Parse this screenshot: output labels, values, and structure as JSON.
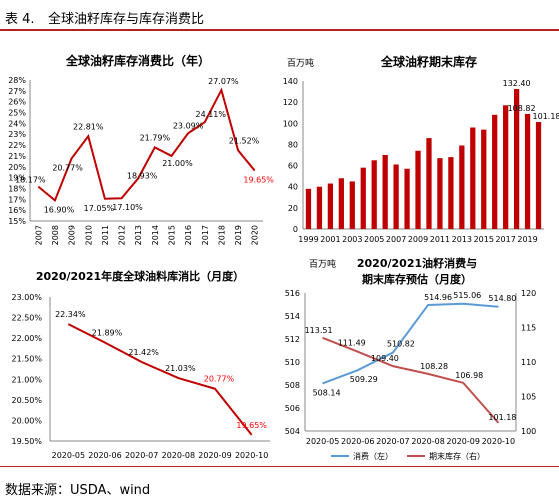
{
  "header": {
    "table_label": "表 4.",
    "title": "全球油籽库存与库存消费比"
  },
  "source": "数据来源：USDA、wind",
  "chart_data": [
    {
      "id": "c1",
      "type": "line",
      "title": "全球油籽库存消费比（年）",
      "categories": [
        "2007",
        "2008",
        "2009",
        "2010",
        "2011",
        "2012",
        "2013",
        "2014",
        "2015",
        "2016",
        "2017",
        "2018",
        "2019",
        "2020"
      ],
      "series": [
        {
          "values": [
            18.17,
            16.9,
            20.77,
            22.81,
            17.05,
            17.1,
            18.93,
            21.79,
            21.0,
            23.09,
            24.11,
            27.07,
            21.52,
            19.65
          ]
        }
      ],
      "data_labels": [
        "18.17%",
        "16.90%",
        "20.77%",
        "22.81%",
        "17.05%",
        "17.10%",
        "18.93%",
        "21.79%",
        "21.00%",
        "23.09%",
        "24.11%",
        "27.07%",
        "21.52%",
        "19.65%"
      ],
      "yticks": [
        "15%",
        "16%",
        "17%",
        "18%",
        "19%",
        "20%",
        "21%",
        "22%",
        "23%",
        "24%",
        "25%",
        "26%",
        "27%",
        "28%"
      ],
      "ylim": [
        15,
        28
      ],
      "color": "#c00000",
      "highlight_color": "#ff0000"
    },
    {
      "id": "c2",
      "type": "bar",
      "title": "全球油籽期末库存",
      "unit": "百万吨",
      "years": [
        1999,
        2000,
        2001,
        2002,
        2003,
        2004,
        2005,
        2006,
        2007,
        2008,
        2009,
        2010,
        2011,
        2012,
        2013,
        2014,
        2015,
        2016,
        2017,
        2018,
        2019,
        2020
      ],
      "values": [
        38,
        40,
        43,
        48,
        45,
        58,
        65,
        70,
        61,
        57,
        74,
        86,
        67,
        68,
        79,
        96,
        94,
        108,
        117,
        132.4,
        108.82,
        101.18
      ],
      "xticks": [
        "1999",
        "2001",
        "2003",
        "2005",
        "2007",
        "2009",
        "2011",
        "2013",
        "2015",
        "2017",
        "2019"
      ],
      "labeled": {
        "19": "132.40",
        "20": "108.82",
        "21": "101.18"
      },
      "yticks": [
        "0",
        "20",
        "40",
        "60",
        "80",
        "100",
        "120",
        "140"
      ],
      "ylim": [
        0,
        140
      ],
      "color": "#c00000"
    },
    {
      "id": "c3",
      "type": "line",
      "title": "2020/2021年度全球油料库消比（月度）",
      "categories": [
        "2020-05",
        "2020-06",
        "2020-07",
        "2020-08",
        "2020-09",
        "2020-10"
      ],
      "series": [
        {
          "values": [
            22.34,
            21.89,
            21.42,
            21.03,
            20.77,
            19.65
          ]
        }
      ],
      "data_labels": [
        "22.34%",
        "21.89%",
        "21.42%",
        "21.03%",
        "20.77%",
        "19.65%"
      ],
      "yticks": [
        "19.50%",
        "20.00%",
        "20.50%",
        "21.00%",
        "21.50%",
        "22.00%",
        "22.50%",
        "23.00%"
      ],
      "ylim": [
        19.5,
        23
      ],
      "color": "#c00000",
      "highlight_color": "#ff0000"
    },
    {
      "id": "c4",
      "type": "line",
      "title": "2020/2021油籽消费与期末库存预估（月度）",
      "title_lines": [
        "2020/2021油籽消费与",
        "期末库存预估（月度）"
      ],
      "unit": "百万吨",
      "categories": [
        "2020-05",
        "2020-06",
        "2020-07",
        "2020-08",
        "2020-09",
        "2020-10"
      ],
      "series": [
        {
          "name": "消费（左）",
          "axis": "left",
          "color": "#5b9bd5",
          "values": [
            508.14,
            509.29,
            510.82,
            514.96,
            515.06,
            514.8
          ],
          "labels": [
            "508.14",
            "509.29",
            "510.82",
            "514.96",
            "515.06",
            "514.80"
          ]
        },
        {
          "name": "期末库存（右）",
          "axis": "right",
          "color": "#c0504d",
          "values": [
            113.51,
            111.49,
            109.4,
            108.28,
            106.98,
            101.18
          ],
          "labels": [
            "113.51",
            "111.49",
            "109.40",
            "108.28",
            "106.98",
            "101.18"
          ]
        }
      ],
      "yticks_left": [
        "504",
        "506",
        "508",
        "510",
        "512",
        "514",
        "516"
      ],
      "ylim_left": [
        504,
        516
      ],
      "yticks_right": [
        "100",
        "105",
        "110",
        "115",
        "120"
      ],
      "ylim_right": [
        100,
        120
      ]
    }
  ]
}
